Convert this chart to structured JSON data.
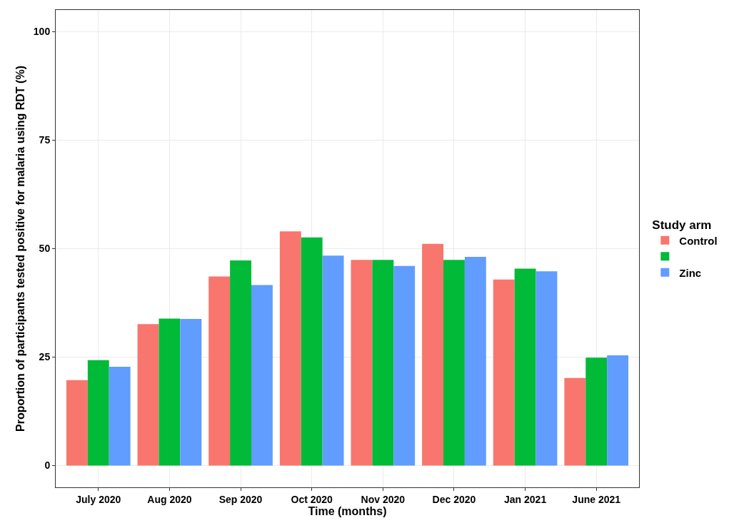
{
  "chart_data": {
    "type": "bar",
    "xlabel": "Time (months)",
    "ylabel": "Proportion of participants tested positive for malaria using RDT (%)",
    "legend_title": "Study arm",
    "categories": [
      "July 2020",
      "Aug 2020",
      "Sep 2020",
      "Oct 2020",
      "Nov 2020",
      "Dec 2020",
      "Jan 2021",
      "June 2021"
    ],
    "series": [
      {
        "name": "Control",
        "color": "#f8766d",
        "values": [
          19.7,
          32.6,
          43.6,
          54.0,
          47.4,
          51.1,
          42.9,
          20.2
        ]
      },
      {
        "color": "#00ba38",
        "values": [
          24.3,
          33.9,
          47.3,
          52.6,
          47.4,
          47.4,
          45.4,
          24.9
        ]
      },
      {
        "name": "Zinc",
        "color": "#619cff",
        "values": [
          22.8,
          33.8,
          41.6,
          48.4,
          46.0,
          48.1,
          44.8,
          25.4
        ]
      }
    ],
    "ylim": [
      -5,
      105
    ],
    "yticks": [
      0,
      25,
      50,
      75,
      100
    ],
    "grid": true,
    "legend": "right"
  }
}
